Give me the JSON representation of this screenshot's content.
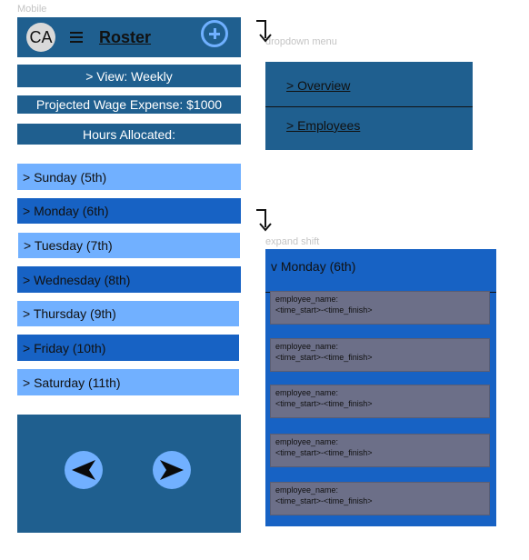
{
  "captions": {
    "mobile": "Mobile",
    "dropdown": "dropdown menu",
    "expand": "expand shift"
  },
  "header": {
    "avatar_initials": "CA",
    "title": "Roster"
  },
  "info": {
    "view": ">  View: Weekly",
    "wage": "Projected Wage Expense: $1000",
    "hours": "Hours Allocated:"
  },
  "days": [
    "> Sunday (5th)",
    "> Monday (6th)",
    "> Tuesday (7th)",
    "> Wednesday (8th)",
    "> Thursday (9th)",
    "> Friday (10th)",
    "> Saturday (11th)"
  ],
  "dropdown_menu": {
    "items": [
      "> Overview",
      "> Employees"
    ]
  },
  "expanded_day": {
    "label": "v  Monday (6th)",
    "shifts": [
      {
        "name": "employee_name:",
        "time": "<time_start>-<time_finish>"
      },
      {
        "name": "employee_name:",
        "time": "<time_start>-<time_finish>"
      },
      {
        "name": "employee_name:",
        "time": "<time_start>-<time_finish>"
      },
      {
        "name": "employee_name:",
        "time": "<time_start>-<time_finish>"
      },
      {
        "name": "employee_name:",
        "time": "<time_start>-<time_finish>"
      }
    ]
  },
  "colors": {
    "panel": "#1f5f8f",
    "light_day": "#71b0ff",
    "dark_day": "#1762c4",
    "shift_card": "#6c6f88"
  }
}
